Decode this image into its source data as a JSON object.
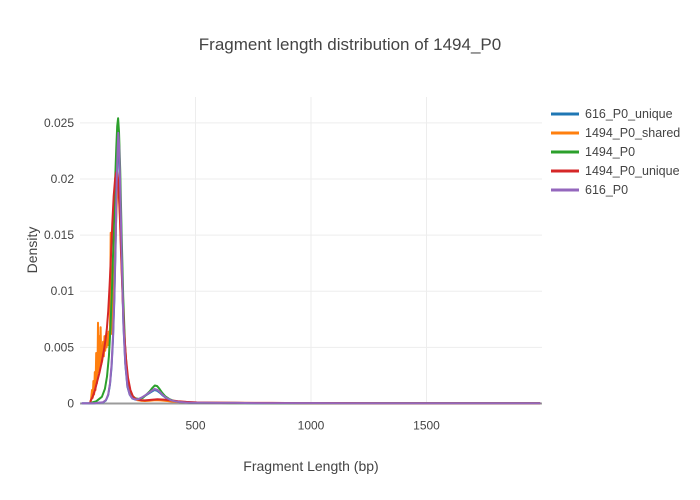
{
  "chart_data": {
    "type": "line",
    "title": "Fragment length distribution of 1494_P0",
    "xlabel": "Fragment Length (bp)",
    "ylabel": "Density",
    "xlim": [
      0,
      2000
    ],
    "ylim": [
      0,
      0.0273
    ],
    "grid": true,
    "legend_position": "right",
    "colors": {
      "text": "#444444",
      "grid": "#ededed",
      "zeroline": "#9b9b9b",
      "background": "#ffffff"
    },
    "x_ticks": {
      "values": [
        500,
        1000,
        1500
      ],
      "labels": [
        "500",
        "1000",
        "1500"
      ]
    },
    "y_ticks": {
      "values": [
        0,
        0.005,
        0.01,
        0.015,
        0.02,
        0.025
      ],
      "labels": [
        "0",
        "0.005",
        "0.01",
        "0.015",
        "0.02",
        "0.025"
      ]
    },
    "series": [
      {
        "name": "616_P0_unique",
        "color": "#1f77b4",
        "x": [
          10,
          60,
          100,
          112,
          122,
          130,
          137,
          143,
          149,
          154,
          159,
          163,
          166,
          170,
          175,
          181,
          188,
          196,
          205,
          215,
          227,
          241,
          256,
          271,
          286,
          300,
          312,
          323,
          334,
          346,
          359,
          374,
          391,
          410,
          432,
          458,
          490,
          530,
          590,
          670,
          770,
          890,
          1020,
          1160,
          1300,
          1450,
          1600,
          1750,
          1990
        ],
        "y": [
          2e-05,
          3e-05,
          0.0001,
          0.00028,
          0.00075,
          0.0017,
          0.0033,
          0.0057,
          0.0094,
          0.014,
          0.0192,
          0.0222,
          0.0236,
          0.0223,
          0.0182,
          0.0125,
          0.007,
          0.0035,
          0.0015,
          0.00078,
          0.00044,
          0.00034,
          0.0004,
          0.00055,
          0.00074,
          0.00092,
          0.00108,
          0.0012,
          0.00113,
          0.00095,
          0.0007,
          0.00047,
          0.0003,
          0.00019,
          0.00012,
          9e-05,
          7e-05,
          6e-05,
          5e-05,
          5e-05,
          4e-05,
          4e-05,
          4e-05,
          3e-05,
          3e-05,
          3e-05,
          3e-05,
          2e-05,
          2e-05
        ]
      },
      {
        "name": "1494_P0_shared",
        "color": "#ff7f0e",
        "x": [
          45,
          48,
          52,
          55,
          58,
          61,
          64,
          67,
          70,
          73,
          76,
          78,
          80,
          83,
          86,
          89,
          92,
          96,
          100,
          103,
          106,
          109,
          112,
          115,
          118,
          121,
          124,
          127,
          130,
          133,
          135,
          138,
          141,
          145,
          149,
          153,
          157,
          161,
          165,
          169,
          173,
          178,
          183,
          189,
          196,
          203,
          211,
          221,
          233,
          247,
          263,
          281,
          301,
          325,
          350,
          378,
          408,
          440,
          480,
          530,
          600,
          700,
          820,
          960,
          1120,
          1300,
          1500,
          1700,
          1990
        ],
        "y": [
          0.0001,
          0.0004,
          0.0012,
          0.0005,
          0.002,
          0.0008,
          0.0028,
          0.0012,
          0.0045,
          0.0018,
          0.0038,
          0.0072,
          0.0028,
          0.006,
          0.0032,
          0.0068,
          0.0035,
          0.0038,
          0.0055,
          0.0042,
          0.006,
          0.0047,
          0.0058,
          0.005,
          0.0062,
          0.0052,
          0.0064,
          0.0055,
          0.0068,
          0.0152,
          0.0062,
          0.0072,
          0.0082,
          0.0098,
          0.0118,
          0.0142,
          0.0168,
          0.0188,
          0.0195,
          0.0186,
          0.0168,
          0.0138,
          0.0105,
          0.0072,
          0.0045,
          0.0027,
          0.0015,
          0.0008,
          0.00045,
          0.0003,
          0.00025,
          0.00022,
          0.00025,
          0.0003,
          0.00028,
          0.00022,
          0.00016,
          0.00012,
          9e-05,
          7e-05,
          6e-05,
          5e-05,
          4e-05,
          4e-05,
          3e-05,
          3e-05,
          3e-05,
          2e-05,
          2e-05
        ]
      },
      {
        "name": "1494_P0",
        "color": "#2ca02c",
        "x": [
          40,
          70,
          95,
          108,
          117,
          125,
          132,
          139,
          146,
          152,
          157,
          161,
          165,
          169,
          174,
          180,
          187,
          195,
          204,
          214,
          226,
          240,
          256,
          272,
          288,
          302,
          314,
          324,
          334,
          344,
          356,
          370,
          386,
          404,
          425,
          450,
          480,
          520,
          570,
          650,
          750,
          880,
          1020,
          1180,
          1350,
          1520,
          1700,
          1990
        ],
        "y": [
          3e-05,
          0.0002,
          0.0006,
          0.0013,
          0.0024,
          0.0042,
          0.0068,
          0.0105,
          0.0152,
          0.0198,
          0.0228,
          0.0247,
          0.0254,
          0.0242,
          0.0208,
          0.0152,
          0.0095,
          0.0052,
          0.0026,
          0.0013,
          0.0007,
          0.00045,
          0.0004,
          0.0005,
          0.0008,
          0.0011,
          0.0014,
          0.0016,
          0.00155,
          0.0013,
          0.00095,
          0.00062,
          0.0004,
          0.00025,
          0.00015,
          0.0001,
          7e-05,
          6e-05,
          5e-05,
          4e-05,
          4e-05,
          3e-05,
          3e-05,
          3e-05,
          2e-05,
          2e-05,
          2e-05,
          2e-05
        ]
      },
      {
        "name": "1494_P0_unique",
        "color": "#d62728",
        "x": [
          45,
          55,
          65,
          75,
          85,
          92,
          98,
          104,
          110,
          116,
          122,
          128,
          134,
          140,
          146,
          152,
          156,
          160,
          164,
          168,
          173,
          178,
          184,
          191,
          199,
          208,
          218,
          230,
          244,
          260,
          280,
          305,
          335,
          365,
          395,
          425,
          460,
          505,
          560,
          630,
          720,
          830,
          950,
          1100,
          1300,
          1500,
          1700,
          1990
        ],
        "y": [
          0.0002,
          0.0006,
          0.0012,
          0.002,
          0.0028,
          0.0035,
          0.0041,
          0.0048,
          0.0056,
          0.0066,
          0.0082,
          0.0105,
          0.0132,
          0.016,
          0.0185,
          0.02,
          0.0205,
          0.0207,
          0.0201,
          0.0188,
          0.0163,
          0.0132,
          0.0098,
          0.0065,
          0.004,
          0.0023,
          0.0012,
          0.0006,
          0.00038,
          0.0003,
          0.00028,
          0.00032,
          0.00038,
          0.00035,
          0.00028,
          0.0002,
          0.00014,
          0.0001,
          8e-05,
          6e-05,
          5e-05,
          5e-05,
          4e-05,
          4e-05,
          3e-05,
          3e-05,
          2e-05,
          2e-05
        ]
      },
      {
        "name": "616_P0",
        "color": "#9467bd",
        "x": [
          10,
          60,
          100,
          112,
          122,
          130,
          137,
          143,
          149,
          154,
          159,
          163,
          166,
          170,
          175,
          181,
          188,
          196,
          205,
          215,
          227,
          241,
          256,
          271,
          286,
          300,
          312,
          323,
          334,
          346,
          359,
          374,
          391,
          410,
          432,
          458,
          490,
          530,
          590,
          670,
          770,
          890,
          1020,
          1160,
          1300,
          1450,
          1600,
          1750,
          1990
        ],
        "y": [
          2e-05,
          3e-05,
          0.00012,
          0.0003,
          0.0008,
          0.0018,
          0.0035,
          0.006,
          0.0098,
          0.0145,
          0.0198,
          0.0228,
          0.0241,
          0.0227,
          0.0185,
          0.0128,
          0.0072,
          0.0036,
          0.0016,
          0.0008,
          0.00045,
          0.00035,
          0.00042,
          0.00058,
          0.00078,
          0.00098,
          0.00115,
          0.0013,
          0.00122,
          0.00102,
          0.00075,
          0.0005,
          0.00032,
          0.0002,
          0.00013,
          9e-05,
          7e-05,
          6e-05,
          5e-05,
          5e-05,
          4e-05,
          4e-05,
          4e-05,
          3e-05,
          3e-05,
          3e-05,
          3e-05,
          2e-05,
          2e-05
        ]
      }
    ]
  }
}
